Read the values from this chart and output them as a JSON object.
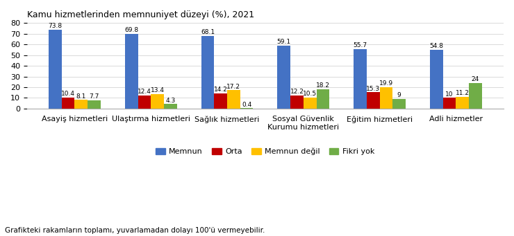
{
  "title": "Kamu hizmetlerinden memnuniyet düzeyi (%), 2021",
  "categories": [
    "Asayiş hizmetleri",
    "Ulaştırma hizmetleri",
    "Sağlık hizmetleri",
    "Sosyal Güvenlik\nKurumu hizmetleri",
    "Eğitim hizmetleri",
    "Adli hizmetler"
  ],
  "series": {
    "Memnun": [
      73.8,
      69.8,
      68.1,
      59.1,
      55.7,
      54.8
    ],
    "Orta": [
      10.4,
      12.4,
      14.2,
      12.2,
      15.3,
      10.0
    ],
    "Memnun değil": [
      8.1,
      13.4,
      17.2,
      10.5,
      19.9,
      11.2
    ],
    "Fikri yok": [
      7.7,
      4.3,
      0.4,
      18.2,
      9.0,
      24.0
    ]
  },
  "colors": {
    "Memnun": "#4472C4",
    "Orta": "#C00000",
    "Memnun değil": "#FFC000",
    "Fikri yok": "#70AD47"
  },
  "ylim": [
    0,
    80
  ],
  "yticks": [
    0,
    10,
    20,
    30,
    40,
    50,
    60,
    70,
    80
  ],
  "footnote": "Grafikteki rakamların toplamı, yuvarlamadan dolayı 100'ü vermeyebilir.",
  "bar_width": 0.17,
  "label_fontsize": 6.5,
  "axis_fontsize": 8.0,
  "title_fontsize": 9.0,
  "legend_fontsize": 8.0,
  "footnote_fontsize": 7.5
}
